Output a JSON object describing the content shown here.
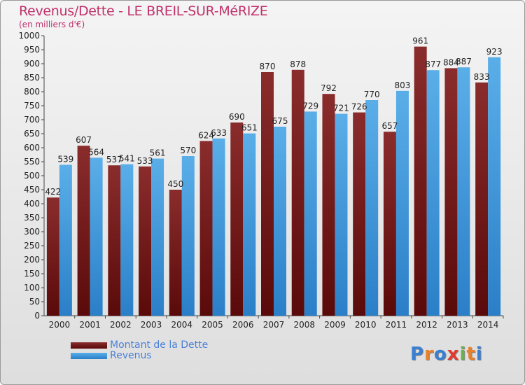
{
  "chart_data": {
    "type": "bar",
    "title": "Revenus/Dette - LE BREIL-SUR-MéRIZE",
    "subtitle": "(en milliers d'€)",
    "categories": [
      "2000",
      "2001",
      "2002",
      "2003",
      "2004",
      "2005",
      "2006",
      "2007",
      "2008",
      "2009",
      "2010",
      "2011",
      "2012",
      "2013",
      "2014"
    ],
    "series": [
      {
        "name": "Montant de la Dette",
        "color": "#7a1f1f",
        "values": [
          422,
          607,
          537,
          533,
          450,
          624,
          690,
          870,
          878,
          792,
          726,
          657,
          961,
          884,
          833
        ]
      },
      {
        "name": "Revenus",
        "color": "#3d95dc",
        "values": [
          539,
          564,
          541,
          561,
          570,
          633,
          651,
          675,
          729,
          721,
          770,
          803,
          877,
          887,
          923
        ]
      }
    ],
    "ylim": [
      0,
      1000
    ],
    "ytick_step": 50,
    "grid": false,
    "legend_position": "bottom-left"
  },
  "logo": {
    "letters": [
      "P",
      "r",
      "o",
      "x",
      "i",
      "t",
      "i"
    ],
    "colors": [
      "#3a7fd0",
      "#e8812b",
      "#3a7fd0",
      "#e03a2e",
      "#6ab04c",
      "#e8812b",
      "#3a7fd0"
    ]
  }
}
